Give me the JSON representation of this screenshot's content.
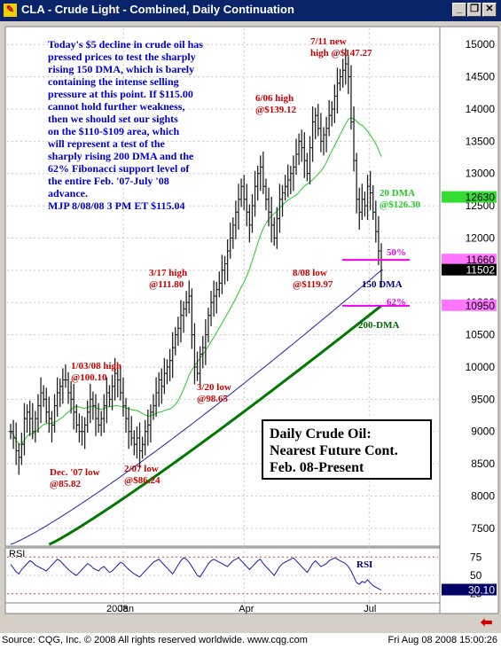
{
  "window": {
    "title": "CLA - Crude Light - Combined, Daily Continuation",
    "icon": "chart-app-icon",
    "buttons": [
      "minimize",
      "restore",
      "close"
    ]
  },
  "status_bar": {
    "source": "Source: CQG, Inc. © 2008 All rights reserved worldwide. www.cqg.com",
    "timestamp": "Fri Aug 08 2008 15:00:26"
  },
  "colors": {
    "up_down_bars": "#222222",
    "sma_20": "#22cc22",
    "sma_150": "#2222aa",
    "sma_200": "#007700",
    "annotation_red": "#cc0000",
    "commentary_blue": "#0000cc",
    "fib_magenta": "#ee00ee",
    "rsi_line": "#1a1aaa"
  },
  "commentary": {
    "lines": [
      "Today's $5 decline in crude oil has",
      "pressed prices to test the sharply",
      "rising 150 DMA, which is barely",
      "containing the intense selling",
      "pressure at this point. If $115.00",
      "cannot hold further weakness,",
      "then we should set our sights",
      "on the $110-$109 area, which",
      "will represent a test of the",
      "sharply rising 200 DMA and the",
      "62% Fibonacci support level of",
      "the entire Feb. '07-July '08",
      "advance.",
      "MJP  8/08/08 3 PM ET $115.04"
    ]
  },
  "chart_box": {
    "lines": [
      "Daily Crude Oil:",
      "Nearest Future Cont.",
      "Feb. 08-Present"
    ]
  },
  "chart_data": {
    "type": "ohlc",
    "symbol": "CLA",
    "period": "daily",
    "y_axis": {
      "ticks": [
        7500,
        8000,
        8500,
        9000,
        9500,
        10000,
        10500,
        11000,
        11500,
        12000,
        12500,
        13000,
        13500,
        14000,
        14500,
        15000
      ],
      "range": [
        7250,
        15250
      ],
      "unit": "cents"
    },
    "x_axis": {
      "labels": [
        "Jan",
        "Apr",
        "Jul"
      ],
      "year_label": "2008"
    },
    "price_labels": [
      {
        "label": "12630",
        "value": 12630,
        "color": "#33dd33"
      },
      {
        "label": "11660",
        "value": 11660,
        "color": "#ff77ff"
      },
      {
        "label": "11502",
        "value": 11502,
        "color": "#000000"
      },
      {
        "label": "10950",
        "value": 10950,
        "color": "#ff77ff"
      }
    ],
    "annotations": [
      {
        "lines": [
          "7/11 new",
          "high @$147.27"
        ],
        "value": 14727,
        "color": "#cc0000"
      },
      {
        "lines": [
          "6/06 high",
          "@$139.12"
        ],
        "value": 13912,
        "color": "#cc0000"
      },
      {
        "lines": [
          "3/17 high",
          "@111.80"
        ],
        "value": 11180,
        "color": "#cc0000"
      },
      {
        "lines": [
          "3/20 low",
          "@98.65"
        ],
        "value": 9865,
        "color": "#cc0000"
      },
      {
        "lines": [
          "1/03/08 high",
          "@100.10"
        ],
        "value": 10010,
        "color": "#cc0000"
      },
      {
        "lines": [
          "Dec. '07 low",
          "@85.82"
        ],
        "value": 8582,
        "color": "#cc0000"
      },
      {
        "lines": [
          "2/07 low",
          "@$86.24"
        ],
        "value": 8624,
        "color": "#cc0000"
      },
      {
        "lines": [
          "8/08 low",
          "@$119.97"
        ],
        "value": 11997,
        "color": "#cc0000"
      },
      {
        "lines": [
          "20 DMA",
          "@$126.30"
        ],
        "value": 12630,
        "color": "#22cc22"
      },
      {
        "lines": [
          "150 DMA"
        ],
        "value": 11500,
        "color": "#000088"
      },
      {
        "lines": [
          "200-DMA"
        ],
        "value": 10500,
        "color": "#006600"
      },
      {
        "lines": [
          "50%"
        ],
        "value": 11660,
        "color": "#ee00ee"
      },
      {
        "lines": [
          "62%"
        ],
        "value": 10950,
        "color": "#ee00ee"
      }
    ],
    "series": [
      {
        "name": "Price",
        "kind": "ohlc-trajectory",
        "closes": [
          9000,
          8900,
          8700,
          8600,
          8800,
          9200,
          9300,
          9200,
          9000,
          9200,
          9400,
          9600,
          9500,
          9300,
          9200,
          9100,
          9400,
          9600,
          9700,
          9800,
          9800,
          9600,
          9500,
          9300,
          9100,
          9000,
          9000,
          9100,
          9300,
          9500,
          9400,
          9200,
          9100,
          9200,
          9400,
          9600,
          9500,
          9700,
          9900,
          9800,
          9600,
          9400,
          9200,
          9000,
          8900,
          8800,
          8900,
          8700,
          8800,
          9000,
          9100,
          9300,
          9400,
          9600,
          9800,
          9700,
          9900,
          10000,
          10100,
          10300,
          10500,
          10600,
          10800,
          10900,
          11000,
          11100,
          10500,
          10000,
          9900,
          10200,
          10300,
          10500,
          10800,
          11000,
          11100,
          11200,
          11300,
          11500,
          11600,
          11800,
          12000,
          12200,
          12400,
          12600,
          12800,
          12600,
          12400,
          12200,
          12500,
          12800,
          13000,
          13100,
          12800,
          12600,
          12400,
          12200,
          12000,
          12300,
          12600,
          12700,
          12800,
          12900,
          13000,
          13100,
          13300,
          13500,
          13400,
          13200,
          13000,
          13400,
          13800,
          13900,
          13700,
          13500,
          13600,
          13700,
          13900,
          14000,
          14200,
          14400,
          14500,
          14600,
          14700,
          14500,
          13800,
          13200,
          12600,
          12400,
          12600,
          12500,
          12800,
          12700,
          12400,
          12100,
          11800,
          11500
        ]
      },
      {
        "name": "20 DMA",
        "closes_note": "derived"
      },
      {
        "name": "150 DMA",
        "closes_note": "derived"
      },
      {
        "name": "200-DMA",
        "closes_note": "derived"
      }
    ]
  },
  "rsi": {
    "label": "RSI",
    "title": "RSI",
    "ticks": [
      25,
      50,
      75
    ],
    "last_value": "30.10",
    "last": 30.1,
    "values": [
      65,
      60,
      55,
      52,
      58,
      62,
      66,
      70,
      68,
      64,
      62,
      60,
      58,
      56,
      60,
      64,
      68,
      72,
      70,
      66,
      62,
      58,
      55,
      52,
      50,
      54,
      58,
      62,
      66,
      64,
      60,
      58,
      56,
      60,
      62,
      58,
      54,
      56,
      60,
      64,
      68,
      66,
      62,
      58,
      55,
      52,
      50,
      48,
      52,
      56,
      60,
      64,
      68,
      70,
      72,
      68,
      64,
      60,
      56,
      52,
      58,
      64,
      70,
      74,
      72,
      68,
      62,
      56,
      50,
      48,
      54,
      60,
      66,
      70,
      72,
      70,
      68,
      66,
      64,
      62,
      66,
      70,
      72,
      74,
      70,
      66,
      62,
      58,
      62,
      66,
      70,
      72,
      66,
      62,
      58,
      54,
      50,
      56,
      62,
      66,
      68,
      70,
      72,
      74,
      70,
      66,
      62,
      58,
      54,
      60,
      66,
      70,
      66,
      62,
      64,
      66,
      70,
      72,
      74,
      72,
      70,
      68,
      66,
      62,
      56,
      48,
      40,
      38,
      42,
      40,
      44,
      40,
      36,
      34,
      32,
      30
    ]
  }
}
